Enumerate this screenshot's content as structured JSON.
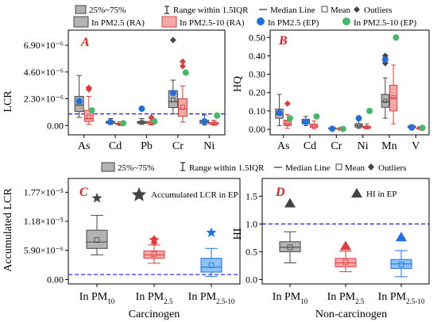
{
  "colors": {
    "gray": "#b3b3b3",
    "gray_edge": "#444444",
    "red": "#f4a9a9",
    "red_edge": "#e23b3b",
    "blue": "#8fc3f4",
    "blue_edge": "#1f6fe0",
    "green": "#45b86b",
    "dark": "#444444",
    "ref_line": "#1a1aff",
    "panel_label": "#e8201f"
  },
  "legend_top": {
    "iqr_box": "25%~75%",
    "range": "Range within 1.5IQR",
    "median": "Median Line",
    "mean": "Mean",
    "outliers": "Outliers",
    "ra25": "In PM2.5 (RA)",
    "ra2510": "In PM2.5-10 (RA)",
    "ep25": "In PM2.5 (EP)",
    "ep2510": "In PM2.5-10 (EP)"
  },
  "legend_mid": {
    "iqr_box": "25%~75%",
    "range": "Range within 1.5IQR",
    "median": "Median Line",
    "mean": "Mean",
    "outliers": "Outliers"
  },
  "xlabel_bottom_left": "Carcinogen",
  "xlabel_bottom_right": "Non-carcinogen",
  "chart_data": [
    {
      "panel": "A",
      "type": "box",
      "ylabel": "LCR",
      "categories": [
        "As",
        "Cd",
        "Pb",
        "Cr",
        "Ni"
      ],
      "yticks": [
        "0.00",
        "2.30×10⁻⁶",
        "4.60×10⁻⁶",
        "6.90×10⁻⁶"
      ],
      "ylim": [
        -8e-07,
        8.2e-06
      ],
      "reference_line": 1e-06,
      "series": [
        {
          "group": "RA PM2.5",
          "boxes": [
            {
              "min": 7e-07,
              "q1": 1.2e-06,
              "median": 1.75e-06,
              "q3": 2.5e-06,
              "max": 4.3e-06,
              "mean": 1.9e-06,
              "outliers": []
            },
            {
              "min": 1e-07,
              "q1": 2e-07,
              "median": 3e-07,
              "q3": 3.5e-07,
              "max": 6e-07,
              "mean": 2.8e-07,
              "outliers": []
            },
            {
              "min": 1e-07,
              "q1": 2e-07,
              "median": 2.8e-07,
              "q3": 3.5e-07,
              "max": 6e-07,
              "mean": 2.7e-07,
              "outliers": []
            },
            {
              "min": 1e-06,
              "q1": 1.55e-06,
              "median": 2.05e-06,
              "q3": 3e-06,
              "max": 3.9e-06,
              "mean": 2.2e-06,
              "outliers": [
                7.35e-06
              ]
            },
            {
              "min": 5e-08,
              "q1": 2e-07,
              "median": 3e-07,
              "q3": 4.5e-07,
              "max": 9e-07,
              "mean": 3.2e-07,
              "outliers": []
            }
          ]
        },
        {
          "group": "RA PM2.5-10",
          "boxes": [
            {
              "min": 1e-07,
              "q1": 3.5e-07,
              "median": 6e-07,
              "q3": 1.3e-06,
              "max": 2.5e-06,
              "mean": 7.5e-07,
              "outliers": [
                3.1e-06,
                3.25e-06
              ]
            },
            {
              "min": 5e-08,
              "q1": 1e-07,
              "median": 1.5e-07,
              "q3": 2e-07,
              "max": 3e-07,
              "mean": 1.5e-07,
              "outliers": []
            },
            {
              "min": 5e-08,
              "q1": 1.5e-07,
              "median": 2.5e-07,
              "q3": 3.5e-07,
              "max": 6e-07,
              "mean": 2.6e-07,
              "outliers": [
                7e-07
              ]
            },
            {
              "min": 3e-07,
              "q1": 8e-07,
              "median": 1.4e-06,
              "q3": 2.3e-06,
              "max": 3.4e-06,
              "mean": 1.6e-06,
              "outliers": [
                5.1e-06,
                5.5e-06
              ]
            },
            {
              "min": 5e-08,
              "q1": 1e-07,
              "median": 1.5e-07,
              "q3": 2.5e-07,
              "max": 4.5e-07,
              "mean": 1.8e-07,
              "outliers": []
            }
          ]
        }
      ],
      "ep_pm25": [
        2.1e-06,
        3e-07,
        1.45e-06,
        2.8e-06,
        3.5e-07
      ],
      "ep_pm2510": [
        1.3e-06,
        2e-07,
        3.5e-07,
        4.55e-06,
        8.5e-07
      ]
    },
    {
      "panel": "B",
      "type": "box",
      "ylabel": "HQ",
      "categories": [
        "As",
        "Cd",
        "Cr",
        "Ni",
        "Mn",
        "V"
      ],
      "yticks": [
        "0.00",
        "0.10",
        "0.20",
        "0.30",
        "0.40",
        "0.50"
      ],
      "ylim": [
        -0.03,
        0.54
      ],
      "series": [
        {
          "group": "RA PM2.5",
          "boxes": [
            {
              "min": 0.02,
              "q1": 0.06,
              "median": 0.08,
              "q3": 0.11,
              "max": 0.19,
              "mean": 0.085,
              "outliers": []
            },
            {
              "min": 0.02,
              "q1": 0.03,
              "median": 0.045,
              "q3": 0.055,
              "max": 0.07,
              "mean": 0.045,
              "outliers": []
            },
            {
              "min": 0.002,
              "q1": 0.004,
              "median": 0.006,
              "q3": 0.008,
              "max": 0.012,
              "mean": 0.006,
              "outliers": []
            },
            {
              "min": 0.005,
              "q1": 0.012,
              "median": 0.02,
              "q3": 0.03,
              "max": 0.05,
              "mean": 0.022,
              "outliers": []
            },
            {
              "min": 0.06,
              "q1": 0.12,
              "median": 0.15,
              "q3": 0.19,
              "max": 0.28,
              "mean": 0.155,
              "outliers": [
                0.36,
                0.4
              ]
            },
            {
              "min": 0.005,
              "q1": 0.01,
              "median": 0.014,
              "q3": 0.018,
              "max": 0.025,
              "mean": 0.014,
              "outliers": []
            }
          ]
        },
        {
          "group": "RA PM2.5-10",
          "boxes": [
            {
              "min": 0.005,
              "q1": 0.02,
              "median": 0.03,
              "q3": 0.05,
              "max": 0.08,
              "mean": 0.035,
              "outliers": [
                0.14
              ]
            },
            {
              "min": 0.003,
              "q1": 0.01,
              "median": 0.018,
              "q3": 0.028,
              "max": 0.045,
              "mean": 0.02,
              "outliers": []
            },
            {
              "min": 0.001,
              "q1": 0.002,
              "median": 0.003,
              "q3": 0.004,
              "max": 0.006,
              "mean": 0.003,
              "outliers": []
            },
            {
              "min": 0.002,
              "q1": 0.006,
              "median": 0.01,
              "q3": 0.016,
              "max": 0.03,
              "mean": 0.011,
              "outliers": []
            },
            {
              "min": 0.03,
              "q1": 0.1,
              "median": 0.17,
              "q3": 0.24,
              "max": 0.35,
              "mean": 0.175,
              "outliers": []
            },
            {
              "min": 0.002,
              "q1": 0.004,
              "median": 0.006,
              "q3": 0.008,
              "max": 0.012,
              "mean": 0.006,
              "outliers": []
            }
          ]
        }
      ],
      "ep_pm25": [
        0.09,
        0.04,
        0.003,
        0.06,
        0.38,
        0.01
      ],
      "ep_pm2510": [
        0.06,
        0.07,
        0.002,
        0.1,
        0.5,
        0.008
      ]
    },
    {
      "panel": "C",
      "type": "box",
      "ylabel": "Accumulated LCR",
      "categories": [
        "In PM10",
        "In PM2.5",
        "In PM2.5-10"
      ],
      "yticks": [
        "0.00",
        "5.90×10⁻⁶",
        "1.18×10⁻⁵",
        "1.77×10⁻⁵"
      ],
      "ylim": [
        -9e-07,
        2.05e-05
      ],
      "reference_line": 1e-06,
      "legend_label": "Accumulated LCR in EP",
      "boxes": [
        {
          "color": "gray",
          "min": 5e-06,
          "q1": 6.3e-06,
          "median": 7.6e-06,
          "q3": 1e-05,
          "max": 1.3e-05,
          "mean": 8e-06,
          "outliers": []
        },
        {
          "color": "red",
          "min": 3.3e-06,
          "q1": 4.3e-06,
          "median": 5e-06,
          "q3": 5.8e-06,
          "max": 7e-06,
          "mean": 5.1e-06,
          "outliers": [
            7.5e-06,
            8.3e-06
          ]
        },
        {
          "color": "blue",
          "min": 6e-07,
          "q1": 1.5e-06,
          "median": 2.5e-06,
          "q3": 4.3e-06,
          "max": 6.3e-06,
          "mean": 2.9e-06,
          "outliers": []
        }
      ],
      "ep_values": [
        1.65e-05,
        8e-06,
        9.5e-06
      ]
    },
    {
      "panel": "D",
      "type": "box",
      "ylabel": "HI",
      "categories": [
        "In PM10",
        "In PM2.5",
        "In PM2.5-10"
      ],
      "yticks": [
        "0.0",
        "0.5",
        "1.0",
        "1.5"
      ],
      "ylim": [
        -0.08,
        1.82
      ],
      "reference_line": 1.0,
      "legend_label": "HI in EP",
      "boxes": [
        {
          "color": "gray",
          "min": 0.3,
          "q1": 0.5,
          "median": 0.58,
          "q3": 0.68,
          "max": 0.86,
          "mean": 0.58,
          "outliers": []
        },
        {
          "color": "red",
          "min": 0.14,
          "q1": 0.23,
          "median": 0.3,
          "q3": 0.38,
          "max": 0.51,
          "mean": 0.31,
          "outliers": []
        },
        {
          "color": "blue",
          "min": 0.05,
          "q1": 0.2,
          "median": 0.28,
          "q3": 0.36,
          "max": 0.52,
          "mean": 0.27,
          "outliers": []
        }
      ],
      "ep_values": [
        1.37,
        0.6,
        0.76
      ]
    }
  ]
}
